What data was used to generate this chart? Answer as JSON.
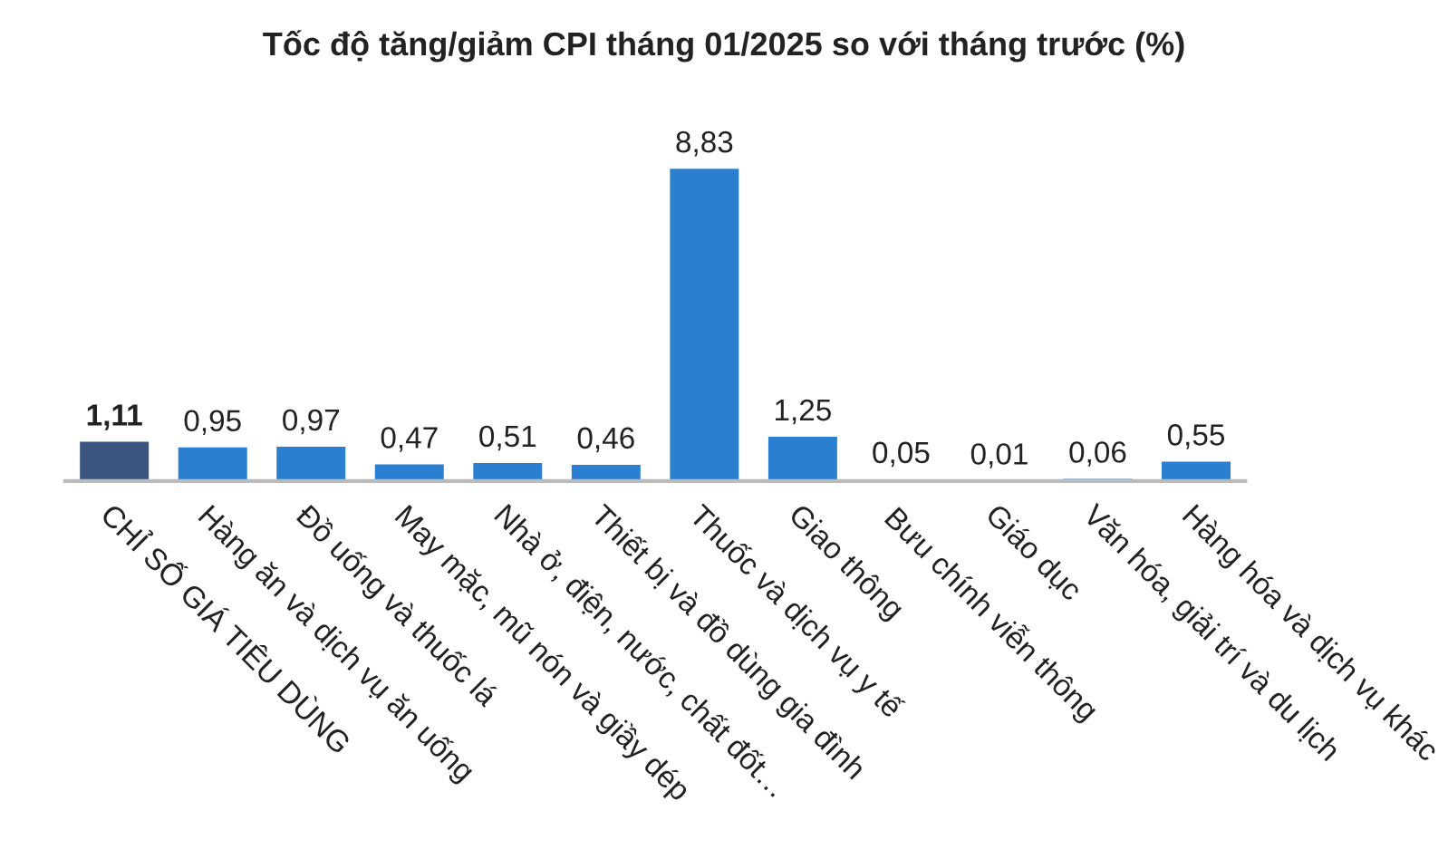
{
  "chart_data": {
    "type": "bar",
    "title": "Tốc độ tăng/giảm CPI tháng 01/2025 so với tháng trước (%)",
    "categories": [
      "CHỈ SỐ GIÁ TIÊU DÙNG",
      "Hàng ăn và dịch vụ ăn uống",
      "Đồ uống và thuốc lá",
      "May mặc, mũ nón và giầy dép",
      "Nhà ở, điện, nước, chất đốt…",
      "Thiết bị và đồ dùng gia đình",
      "Thuốc và dịch vụ y tế",
      "Giao thông",
      "Bưu chính viễn thông",
      "Giáo dục",
      "Văn hóa, giải trí và du lịch",
      "Hàng hóa và dịch vụ khác"
    ],
    "values": [
      1.11,
      0.95,
      0.97,
      0.47,
      0.51,
      0.46,
      8.83,
      1.25,
      0.05,
      0.01,
      0.06,
      0.55
    ],
    "colors": [
      "#3b5480",
      "#2b7fd0",
      "#2b7fd0",
      "#2b7fd0",
      "#2b7fd0",
      "#2b7fd0",
      "#2b7fd0",
      "#2b7fd0",
      "#2b7fd0",
      "#2b7fd0",
      "#2b7fd0",
      "#2b7fd0"
    ],
    "value_labels": [
      "1,11",
      "0,95",
      "0,97",
      "0,47",
      "0,51",
      "0,46",
      "8,83",
      "1,25",
      "0,05",
      "0,01",
      "0,06",
      "0,55"
    ],
    "grid": false,
    "legend": false
  }
}
